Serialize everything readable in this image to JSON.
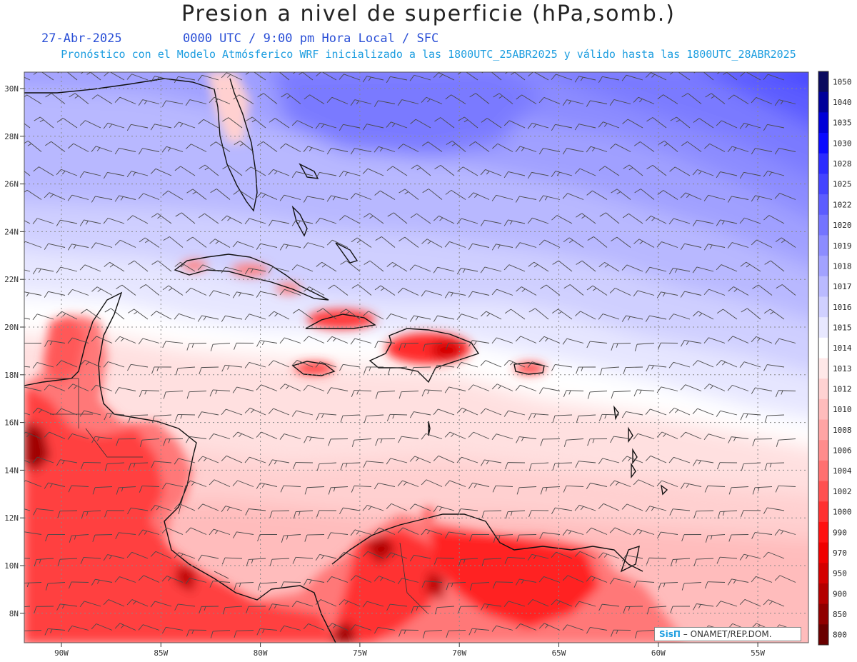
{
  "title": "Presion a nivel de superficie (hPa,somb.)",
  "date_label": "27-Abr-2025",
  "time_label": "0000 UTC / 9:00 pm Hora Local / SFC",
  "model_info": "Pronóstico con el Modelo Atmósferico WRF inicializado a las 1800UTC_25ABR2025 y válido hasta las  1800UTC_28ABR2025",
  "credit": {
    "logo": "SisΠ",
    "separator": "–",
    "org": "ONAMET/REP.DOM."
  },
  "axes": {
    "lon_labels": [
      "90W",
      "85W",
      "80W",
      "75W",
      "70W",
      "65W",
      "60W",
      "55W"
    ],
    "lat_labels": [
      "30N",
      "28N",
      "26N",
      "24N",
      "22N",
      "20N",
      "18N",
      "16N",
      "14N",
      "12N",
      "10N",
      "8N"
    ]
  },
  "colorbar": {
    "levels": [
      "1050",
      "1040",
      "1035",
      "1030",
      "1028",
      "1025",
      "1022",
      "1020",
      "1019",
      "1018",
      "1017",
      "1016",
      "1015",
      "1014",
      "1013",
      "1012",
      "1010",
      "1008",
      "1006",
      "1004",
      "1002",
      "1000",
      "990",
      "970",
      "950",
      "900",
      "850",
      "800"
    ],
    "colors": [
      "#0a0a5e",
      "#00009a",
      "#0000d8",
      "#0a0aff",
      "#2b2bff",
      "#4343ff",
      "#5c5cff",
      "#7474ff",
      "#8c8cff",
      "#a2a2ff",
      "#babaff",
      "#d0d0ff",
      "#e8e8ff",
      "#ffffff",
      "#ffe8e8",
      "#ffd2d2",
      "#ffbcbc",
      "#ffa4a4",
      "#ff8c8c",
      "#ff7070",
      "#ff5050",
      "#ff3030",
      "#ff1010",
      "#f00000",
      "#d40000",
      "#b40000",
      "#900000",
      "#6a0000"
    ]
  }
}
